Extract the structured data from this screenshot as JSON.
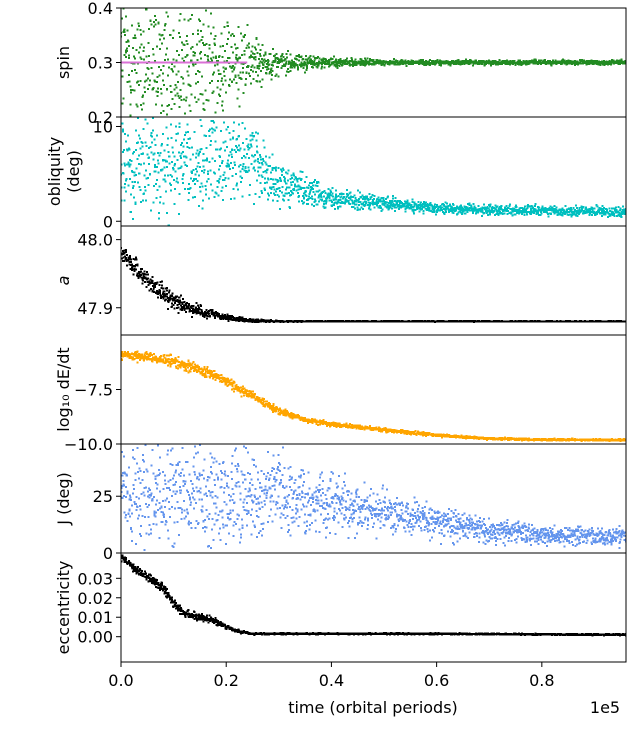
{
  "chart_data": {
    "type": "scatter",
    "layout": "stacked-panels",
    "shared_x": {
      "label": "time (orbital periods)",
      "range": [
        0.0,
        0.96
      ],
      "ticks": [
        0.0,
        0.2,
        0.4,
        0.6,
        0.8
      ],
      "tick_labels": [
        "0.0",
        "0.2",
        "0.4",
        "0.6",
        "0.8"
      ],
      "offset_text": "1e5"
    },
    "panels": [
      {
        "id": "spin",
        "ylabel": "spin",
        "ylim": [
          0.2,
          0.4
        ],
        "yticks": [
          0.2,
          0.3,
          0.4
        ],
        "ytick_labels": [
          "0.2",
          "0.3",
          "0.4"
        ],
        "series": [
          {
            "name": "spin",
            "color": "#228B22",
            "style": "points",
            "x": [
              0.0,
              0.05,
              0.1,
              0.15,
              0.2,
              0.25,
              0.3,
              0.4,
              0.5,
              0.6,
              0.7,
              0.8,
              0.9,
              0.96
            ],
            "y": [
              0.3,
              0.3,
              0.3,
              0.3,
              0.3,
              0.3,
              0.3,
              0.3,
              0.3,
              0.3,
              0.3,
              0.3,
              0.3,
              0.3
            ],
            "spread": [
              0.13,
              0.13,
              0.13,
              0.12,
              0.09,
              0.05,
              0.02,
              0.008,
              0.005,
              0.004,
              0.004,
              0.004,
              0.004,
              0.004
            ]
          },
          {
            "name": "reference",
            "color": "#DA70D6",
            "style": "line",
            "x": [
              0.0,
              0.24
            ],
            "y": [
              0.3,
              0.3
            ]
          }
        ]
      },
      {
        "id": "obliquity",
        "ylabel": "obliquity\n(deg)",
        "ylim": [
          -0.5,
          11.0
        ],
        "yticks": [
          0,
          10
        ],
        "ytick_labels": [
          "0",
          "10"
        ],
        "series": [
          {
            "name": "obliquity",
            "color": "#00BFBF",
            "style": "points",
            "x": [
              0.0,
              0.1,
              0.2,
              0.25,
              0.3,
              0.4,
              0.5,
              0.6,
              0.7,
              0.8,
              0.96
            ],
            "y": [
              6.0,
              6.0,
              6.0,
              7.0,
              4.0,
              2.5,
              1.8,
              1.4,
              1.2,
              1.1,
              1.0
            ],
            "spread": [
              5.0,
              5.0,
              5.0,
              3.5,
              2.0,
              1.0,
              0.7,
              0.6,
              0.5,
              0.5,
              0.5
            ]
          }
        ]
      },
      {
        "id": "a",
        "ylabel": "a",
        "ylim": [
          47.86,
          48.02
        ],
        "yticks": [
          47.9,
          48.0
        ],
        "ytick_labels": [
          "47.9",
          "48.0"
        ],
        "series": [
          {
            "name": "a",
            "color": "#000000",
            "style": "points",
            "x": [
              0.0,
              0.02,
              0.05,
              0.1,
              0.15,
              0.2,
              0.25,
              0.3,
              0.4,
              0.6,
              0.8,
              0.96
            ],
            "y": [
              47.98,
              47.965,
              47.94,
              47.91,
              47.895,
              47.885,
              47.881,
              47.88,
              47.88,
              47.88,
              47.88,
              47.88
            ],
            "spread": [
              0.012,
              0.012,
              0.014,
              0.012,
              0.008,
              0.004,
              0.002,
              0.0008,
              0.0004,
              0.0004,
              0.0004,
              0.0004
            ]
          }
        ]
      },
      {
        "id": "dEdt",
        "ylabel": "log₁₀ dE/dt",
        "ylim": [
          -10.0,
          -5.0
        ],
        "yticks": [
          -10.0,
          -7.5
        ],
        "ytick_labels": [
          "−10.0",
          "−7.5"
        ],
        "series": [
          {
            "name": "dE/dt",
            "color": "#FFA500",
            "style": "points",
            "x": [
              0.0,
              0.05,
              0.1,
              0.15,
              0.2,
              0.25,
              0.3,
              0.35,
              0.4,
              0.5,
              0.6,
              0.7,
              0.8,
              0.96
            ],
            "y": [
              -5.9,
              -6.0,
              -6.2,
              -6.6,
              -7.1,
              -7.8,
              -8.5,
              -8.9,
              -9.1,
              -9.35,
              -9.6,
              -9.75,
              -9.8,
              -9.82
            ],
            "spread": [
              0.2,
              0.2,
              0.25,
              0.25,
              0.2,
              0.2,
              0.15,
              0.12,
              0.1,
              0.08,
              0.06,
              0.05,
              0.04,
              0.04
            ]
          }
        ]
      },
      {
        "id": "J",
        "ylabel": "J (deg)",
        "ylim": [
          0,
          48
        ],
        "yticks": [
          0,
          25
        ],
        "ytick_labels": [
          "0",
          "25"
        ],
        "series": [
          {
            "name": "J",
            "color": "#6495ED",
            "style": "points",
            "x": [
              0.0,
              0.1,
              0.2,
              0.25,
              0.3,
              0.4,
              0.5,
              0.6,
              0.7,
              0.8,
              0.96
            ],
            "y": [
              25,
              25,
              26,
              27,
              25,
              22,
              18,
              14,
              10,
              8,
              7
            ],
            "spread": [
              22,
              22,
              21,
              18,
              15,
              12,
              9,
              7,
              5,
              4,
              3.5
            ]
          }
        ]
      },
      {
        "id": "eccentricity",
        "ylabel": "eccentricity",
        "ylim": [
          -0.013,
          0.043
        ],
        "yticks": [
          0.0,
          0.01,
          0.02,
          0.03
        ],
        "ytick_labels": [
          "0.00",
          "0.01",
          "0.02",
          "0.03"
        ],
        "series": [
          {
            "name": "eccentricity",
            "color": "#000000",
            "style": "points",
            "x": [
              0.0,
              0.02,
              0.05,
              0.08,
              0.1,
              0.12,
              0.15,
              0.18,
              0.2,
              0.22,
              0.25,
              0.4,
              0.6,
              0.8,
              0.96
            ],
            "y": [
              0.041,
              0.036,
              0.031,
              0.025,
              0.017,
              0.012,
              0.01,
              0.008,
              0.005,
              0.003,
              0.0015,
              0.0015,
              0.0015,
              0.0012,
              0.001
            ],
            "spread": [
              0.002,
              0.002,
              0.002,
              0.003,
              0.002,
              0.002,
              0.002,
              0.0015,
              0.001,
              0.0008,
              0.0004,
              0.0003,
              0.0003,
              0.0003,
              0.0003
            ]
          }
        ]
      }
    ]
  }
}
